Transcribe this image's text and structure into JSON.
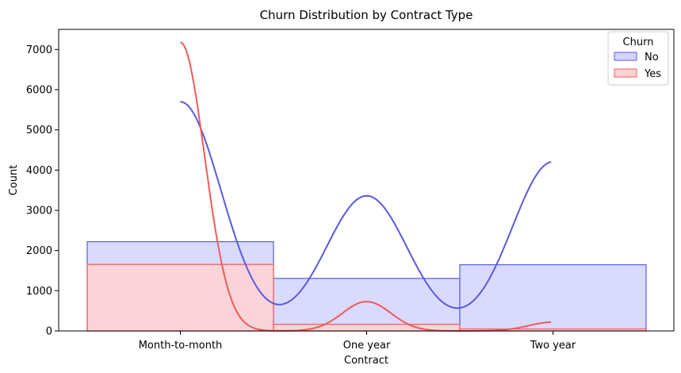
{
  "chart_data": {
    "type": "bar",
    "title": "Churn Distribution by Contract Type",
    "xlabel": "Contract",
    "ylabel": "Count",
    "categories": [
      "Month-to-month",
      "One year",
      "Two year"
    ],
    "ylim": [
      0,
      7500
    ],
    "yticks": [
      0,
      1000,
      2000,
      3000,
      4000,
      5000,
      6000,
      7000
    ],
    "grid": false,
    "legend": {
      "title": "Churn",
      "position": "top-right"
    },
    "series": [
      {
        "name": "No",
        "color": "#5a5ade",
        "fill": "#d4d4ff",
        "values": [
          2220,
          1307,
          1647
        ],
        "kde": {
          "peaks": [
            5700,
            3360,
            4210
          ],
          "sigma": 0.22
        }
      },
      {
        "name": "Yes",
        "color": "#f05a5a",
        "fill": "#ffd2d2",
        "values": [
          1655,
          166,
          48
        ],
        "kde": {
          "peaks": [
            7180,
            730,
            220
          ],
          "sigma": 0.13
        }
      }
    ]
  }
}
